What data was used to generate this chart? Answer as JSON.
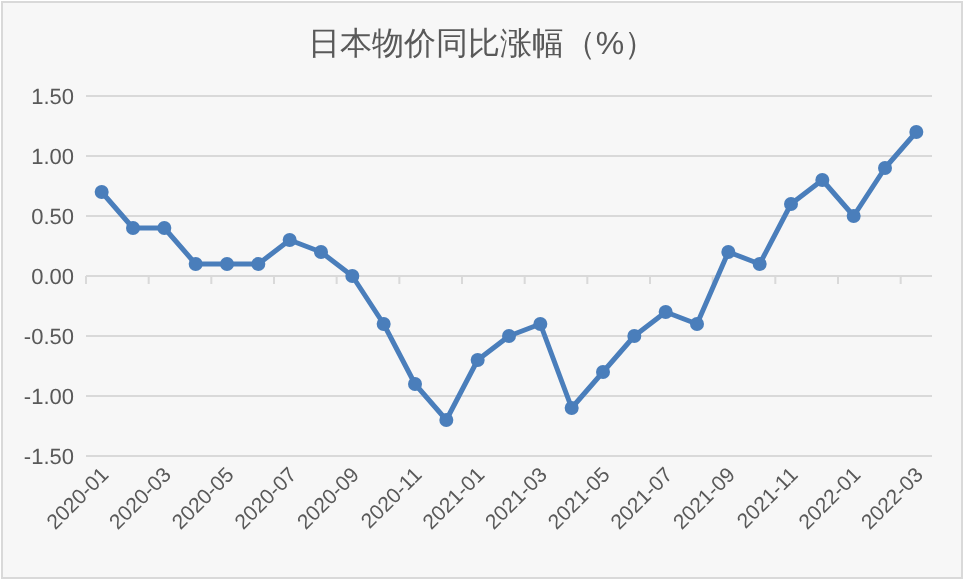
{
  "chart_data": {
    "type": "line",
    "title": "日本物价同比涨幅（%）",
    "categories": [
      "2020-01",
      null,
      "2020-03",
      null,
      "2020-05",
      null,
      "2020-07",
      null,
      "2020-09",
      null,
      "2020-11",
      null,
      "2021-01",
      null,
      "2021-03",
      null,
      "2021-05",
      null,
      "2021-07",
      null,
      "2021-09",
      null,
      "2021-11",
      null,
      "2022-01",
      null,
      "2022-03"
    ],
    "series": [
      {
        "color": "#4a7ebb",
        "values": [
          0.7,
          0.4,
          0.4,
          0.1,
          0.1,
          0.1,
          0.3,
          0.2,
          0.0,
          -0.4,
          -0.9,
          -1.2,
          -0.7,
          -0.5,
          -0.4,
          -1.1,
          -0.8,
          -0.5,
          -0.3,
          -0.4,
          0.2,
          0.1,
          0.6,
          0.8,
          0.5,
          0.9,
          1.2
        ]
      }
    ],
    "ylim": [
      -1.5,
      1.5
    ],
    "yticks": [
      {
        "value": -1.5,
        "label": "-1.50"
      },
      {
        "value": -1,
        "label": "-1.00"
      },
      {
        "value": -0.5,
        "label": "-0.50"
      },
      {
        "value": 0,
        "label": "0.00"
      },
      {
        "value": 0.5,
        "label": "0.50"
      },
      {
        "value": 1,
        "label": "1.00"
      },
      {
        "value": 1.5,
        "label": "1.50"
      }
    ],
    "grid": "y",
    "marker": "circle",
    "line_style": "solid"
  }
}
